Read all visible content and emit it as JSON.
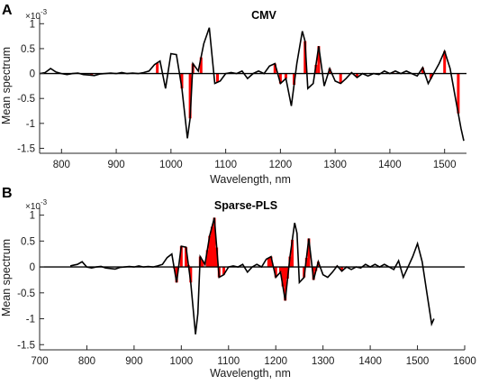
{
  "chart_data": [
    {
      "panel_label": "A",
      "type": "line",
      "title": "CMV",
      "xlabel": "Wavelength, nm",
      "ylabel": "Mean spectrum",
      "y_exponent_label": "×10",
      "y_exponent_power": "-3",
      "xlim": [
        760,
        1540
      ],
      "ylim": [
        -1.6,
        1.15
      ],
      "xticks": [
        800,
        900,
        1000,
        1100,
        1200,
        1300,
        1400,
        1500
      ],
      "yticks": [
        1,
        0.5,
        0,
        -0.5,
        -1,
        -1.5
      ],
      "ytick_labels": [
        "1",
        "0.5",
        "0",
        "-0.5",
        "-1",
        "-1.5"
      ],
      "grid": false,
      "colors": {
        "line": "#000000",
        "highlight": "#ff0000"
      },
      "series_x": [
        760,
        770,
        780,
        790,
        800,
        810,
        820,
        830,
        840,
        850,
        860,
        870,
        880,
        890,
        900,
        910,
        920,
        930,
        940,
        950,
        960,
        970,
        980,
        990,
        1000,
        1010,
        1020,
        1030,
        1035,
        1040,
        1050,
        1060,
        1070,
        1080,
        1090,
        1100,
        1110,
        1120,
        1130,
        1140,
        1150,
        1160,
        1170,
        1180,
        1190,
        1200,
        1210,
        1220,
        1230,
        1240,
        1245,
        1250,
        1260,
        1270,
        1280,
        1290,
        1300,
        1310,
        1320,
        1330,
        1340,
        1350,
        1360,
        1370,
        1380,
        1390,
        1400,
        1410,
        1420,
        1430,
        1440,
        1450,
        1460,
        1470,
        1480,
        1490,
        1500,
        1510,
        1520,
        1530,
        1535
      ],
      "series_y": [
        0.0,
        0.02,
        0.1,
        0.03,
        0.0,
        -0.02,
        0.0,
        0.01,
        -0.02,
        -0.03,
        -0.04,
        -0.01,
        0.0,
        0.01,
        0.0,
        0.02,
        0.0,
        0.01,
        0.0,
        0.02,
        0.05,
        0.18,
        0.25,
        -0.3,
        0.4,
        0.38,
        -0.3,
        -1.3,
        -0.9,
        0.2,
        0.05,
        0.6,
        0.92,
        -0.2,
        -0.15,
        0.0,
        0.02,
        0.0,
        0.05,
        -0.1,
        0.0,
        0.05,
        0.0,
        0.15,
        0.2,
        -0.2,
        -0.1,
        -0.65,
        0.2,
        0.85,
        0.65,
        -0.3,
        -0.2,
        0.55,
        -0.25,
        0.1,
        -0.15,
        -0.2,
        -0.1,
        0.02,
        -0.08,
        0.0,
        -0.05,
        0.0,
        -0.02,
        0.05,
        0.0,
        0.05,
        0.0,
        0.05,
        0.0,
        -0.05,
        0.12,
        -0.2,
        0.0,
        0.2,
        0.45,
        0.1,
        -0.5,
        -1.1,
        -1.35
      ],
      "highlighted_wavelengths": [
        855,
        975,
        1020,
        1035,
        1040,
        1055,
        1085,
        1190,
        1200,
        1210,
        1225,
        1245,
        1265,
        1270,
        1290,
        1310,
        1340,
        1405,
        1460,
        1475,
        1500,
        1525
      ]
    },
    {
      "panel_label": "B",
      "type": "line",
      "title": "Sparse-PLS",
      "xlabel": "Wavelength, nm",
      "ylabel": "Mean spectrum",
      "y_exponent_label": "×10",
      "y_exponent_power": "-3",
      "xlim": [
        700,
        1600
      ],
      "ylim": [
        -1.6,
        1.15
      ],
      "xticks": [
        700,
        800,
        900,
        1000,
        1100,
        1200,
        1300,
        1400,
        1500,
        1600
      ],
      "yticks": [
        1,
        0.5,
        0,
        -0.5,
        -1,
        -1.5
      ],
      "ytick_labels": [
        "1",
        "0.5",
        "0",
        "-0.5",
        "-1",
        "-1.5"
      ],
      "grid": false,
      "colors": {
        "line": "#000000",
        "highlight": "#ff0000"
      },
      "series_x": [
        765,
        770,
        780,
        790,
        800,
        810,
        820,
        830,
        840,
        850,
        860,
        870,
        880,
        890,
        900,
        910,
        920,
        930,
        940,
        950,
        960,
        970,
        980,
        990,
        1000,
        1010,
        1020,
        1030,
        1035,
        1040,
        1050,
        1060,
        1070,
        1080,
        1090,
        1100,
        1110,
        1120,
        1130,
        1140,
        1150,
        1160,
        1170,
        1180,
        1190,
        1200,
        1210,
        1220,
        1230,
        1240,
        1245,
        1250,
        1260,
        1270,
        1280,
        1290,
        1300,
        1310,
        1320,
        1330,
        1340,
        1350,
        1360,
        1370,
        1380,
        1390,
        1400,
        1410,
        1420,
        1430,
        1440,
        1450,
        1460,
        1470,
        1480,
        1490,
        1500,
        1510,
        1520,
        1530,
        1535
      ],
      "series_y": [
        0.02,
        0.03,
        0.05,
        0.1,
        0.0,
        -0.02,
        0.0,
        0.01,
        -0.02,
        -0.03,
        -0.04,
        -0.01,
        0.0,
        0.01,
        0.0,
        0.02,
        0.0,
        0.01,
        0.0,
        0.02,
        0.05,
        0.18,
        0.25,
        -0.3,
        0.4,
        0.38,
        -0.3,
        -1.3,
        -0.9,
        0.2,
        0.05,
        0.6,
        0.95,
        -0.2,
        -0.15,
        0.0,
        0.02,
        0.0,
        0.05,
        -0.1,
        0.0,
        0.05,
        0.0,
        0.15,
        0.2,
        -0.2,
        -0.1,
        -0.65,
        0.2,
        0.85,
        0.65,
        -0.3,
        -0.2,
        0.55,
        -0.25,
        0.1,
        -0.15,
        -0.2,
        -0.1,
        0.02,
        -0.08,
        0.0,
        -0.05,
        0.0,
        -0.02,
        0.05,
        0.0,
        0.05,
        0.0,
        0.05,
        0.0,
        -0.05,
        0.12,
        -0.2,
        0.0,
        0.2,
        0.45,
        0.1,
        -0.5,
        -1.1,
        -1.0
      ],
      "highlighted_wavelengths": [
        985,
        990,
        1000,
        1010,
        1015,
        1020,
        1040,
        1045,
        1055,
        1060,
        1065,
        1070,
        1075,
        1080,
        1090,
        1185,
        1190,
        1195,
        1200,
        1210,
        1215,
        1220,
        1225,
        1230,
        1235,
        1260,
        1265,
        1270,
        1280,
        1285,
        1290,
        1330,
        1340,
        1350
      ]
    }
  ]
}
